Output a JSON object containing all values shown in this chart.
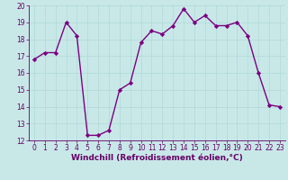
{
  "x": [
    0,
    1,
    2,
    3,
    4,
    5,
    6,
    7,
    8,
    9,
    10,
    11,
    12,
    13,
    14,
    15,
    16,
    17,
    18,
    19,
    20,
    21,
    22,
    23
  ],
  "y": [
    16.8,
    17.2,
    17.2,
    19.0,
    18.2,
    12.3,
    12.3,
    12.6,
    15.0,
    15.4,
    17.8,
    18.5,
    18.3,
    18.8,
    19.8,
    19.0,
    19.4,
    18.8,
    18.8,
    19.0,
    18.2,
    16.0,
    14.1,
    14.0
  ],
  "line_color": "#7b0080",
  "marker": "D",
  "marker_size": 2.2,
  "linewidth": 1.0,
  "bg_color": "#c8e8e8",
  "grid_color": "#b0d8d8",
  "xlabel": "Windchill (Refroidissement éolien,°C)",
  "xlabel_fontsize": 6.5,
  "xlim": [
    -0.5,
    23.5
  ],
  "ylim": [
    12,
    20
  ],
  "yticks": [
    12,
    13,
    14,
    15,
    16,
    17,
    18,
    19,
    20
  ],
  "xticks": [
    0,
    1,
    2,
    3,
    4,
    5,
    6,
    7,
    8,
    9,
    10,
    11,
    12,
    13,
    14,
    15,
    16,
    17,
    18,
    19,
    20,
    21,
    22,
    23
  ],
  "tick_fontsize": 5.5,
  "tick_color": "#660066",
  "spine_color": "#660066",
  "grid_linewidth": 0.5
}
